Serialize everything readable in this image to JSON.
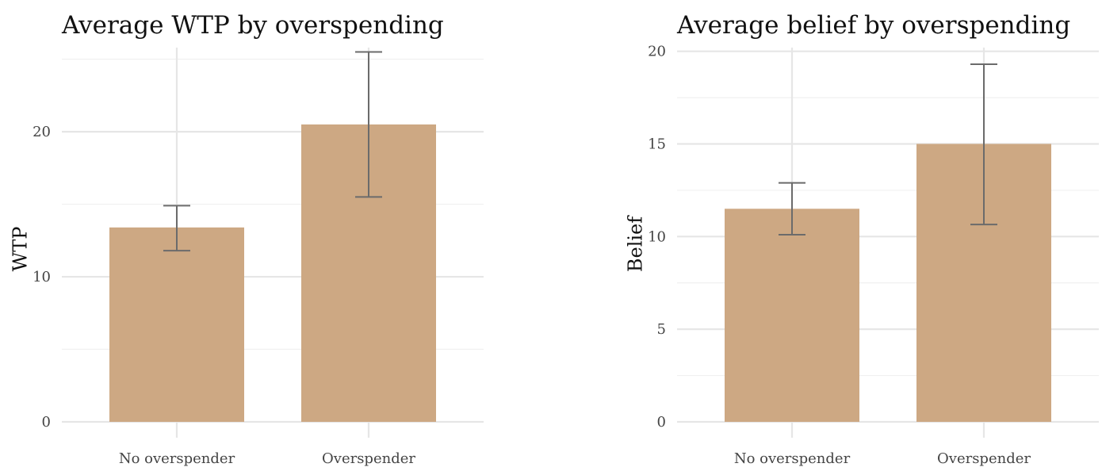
{
  "chart_data": [
    {
      "type": "bar",
      "title": "Average WTP by overspending",
      "xlabel": "",
      "ylabel": "WTP",
      "categories": [
        "No overspender",
        "Overspender"
      ],
      "values": [
        13.4,
        20.5
      ],
      "error_low": [
        11.8,
        15.5
      ],
      "error_high": [
        14.9,
        25.5
      ],
      "ylim": [
        0,
        25.8
      ],
      "yticks": [
        0,
        10,
        20
      ],
      "grid": true,
      "bar_color": "#cda883",
      "error_color": "#6b6b6b"
    },
    {
      "type": "bar",
      "title": "Average belief by overspending",
      "xlabel": "",
      "ylabel": "Belief",
      "categories": [
        "No overspender",
        "Overspender"
      ],
      "values": [
        11.5,
        15.0
      ],
      "error_low": [
        10.1,
        10.65
      ],
      "error_high": [
        12.9,
        19.3
      ],
      "ylim": [
        0,
        20.2
      ],
      "yticks": [
        0,
        5,
        10,
        15,
        20
      ],
      "grid": true,
      "bar_color": "#cda883",
      "error_color": "#6b6b6b"
    }
  ]
}
